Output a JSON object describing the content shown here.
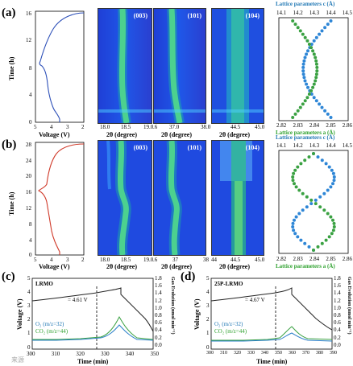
{
  "panels": {
    "a": {
      "label": "(a)"
    },
    "b": {
      "label": "(b)"
    },
    "c": {
      "label": "(c)"
    },
    "d": {
      "label": "(d)"
    }
  },
  "voltage_profile": {
    "xlabel": "Voltage (V)",
    "ylabel": "Time (h)",
    "xticks": [
      "5",
      "4",
      "3",
      "2"
    ],
    "a_yticks": [
      "0",
      "4",
      "8",
      "12",
      "16"
    ],
    "b_yticks": [
      "0",
      "4",
      "8",
      "12",
      "16",
      "20",
      "24",
      "28"
    ]
  },
  "heatmaps": {
    "tags": [
      "(003)",
      "(101)",
      "(104)"
    ],
    "xlabel": "2θ (degree)",
    "ticks_003": [
      "18.0",
      "18.5",
      "19.0"
    ],
    "ticks_101": [
      "37.0",
      "38.0"
    ],
    "ticks_101_left": ".6",
    "ticks_104": [
      "44.5",
      "45.0"
    ],
    "b_ticks_003": [
      "18.0",
      "18.5",
      "19.0"
    ],
    "b_ticks_101": [
      "37",
      "38"
    ],
    "b_ticks_101_left": ".6",
    "b_ticks_104": [
      "44.5",
      "45.0"
    ],
    "b_left_104": "44"
  },
  "lattice": {
    "top_label": "Lattice parameters c (Å)",
    "bottom_label": "Lattice parameters a (Å)",
    "c_ticks": [
      "14.1",
      "14.2",
      "14.3",
      "14.4",
      "14.5"
    ],
    "a_ticks": [
      "2.82",
      "2.83",
      "2.84",
      "2.85",
      "2.86"
    ],
    "colors": {
      "c": "#2e86d6",
      "a": "#3aa142"
    }
  },
  "gas": {
    "c": {
      "title": "LRMO",
      "voltage_annot": "= 4.61 V",
      "legend_o2": "O₂ (m/z=32)",
      "legend_co2": "CO₂ (m/z=44)",
      "xticks": [
        "300",
        "310",
        "320",
        "330",
        "340",
        "350"
      ],
      "xlabel": "Time (min)",
      "ylabel_left": "Voltage (V)",
      "ylabel_right": "Gas Evolution (nmol min⁻¹)",
      "yticks_left": [
        "0",
        "1",
        "2",
        "3",
        "4",
        "5"
      ],
      "yticks_right": [
        "0.0",
        "0.2",
        "0.4",
        "0.6",
        "0.8",
        "1.0",
        "1.2",
        "1.4",
        "1.6",
        "1.8"
      ]
    },
    "d": {
      "title": "25P-LRMO",
      "voltage_annot": "= 4.67 V",
      "legend_o2": "O₂ (m/z=32)",
      "legend_co2": "CO₂ (m/z=44)",
      "xticks": [
        "300",
        "310",
        "320",
        "330",
        "340",
        "350",
        "360",
        "370",
        "380",
        "390"
      ],
      "xlabel": "Time (min)",
      "ylabel_left": "Voltage (V)",
      "ylabel_right": "Gas Evolution (nmol min⁻¹)",
      "yticks_left": [
        "0",
        "1",
        "2",
        "3",
        "4",
        "5"
      ],
      "yticks_right": [
        "0.0",
        "0.2",
        "0.4",
        "0.6",
        "0.8",
        "1.0",
        "1.2",
        "1.4",
        "1.6",
        "1.8"
      ]
    },
    "colors": {
      "voltage": "#222222",
      "o2": "#2a7fc9",
      "co2": "#3aa142"
    }
  },
  "watermark": "来源"
}
